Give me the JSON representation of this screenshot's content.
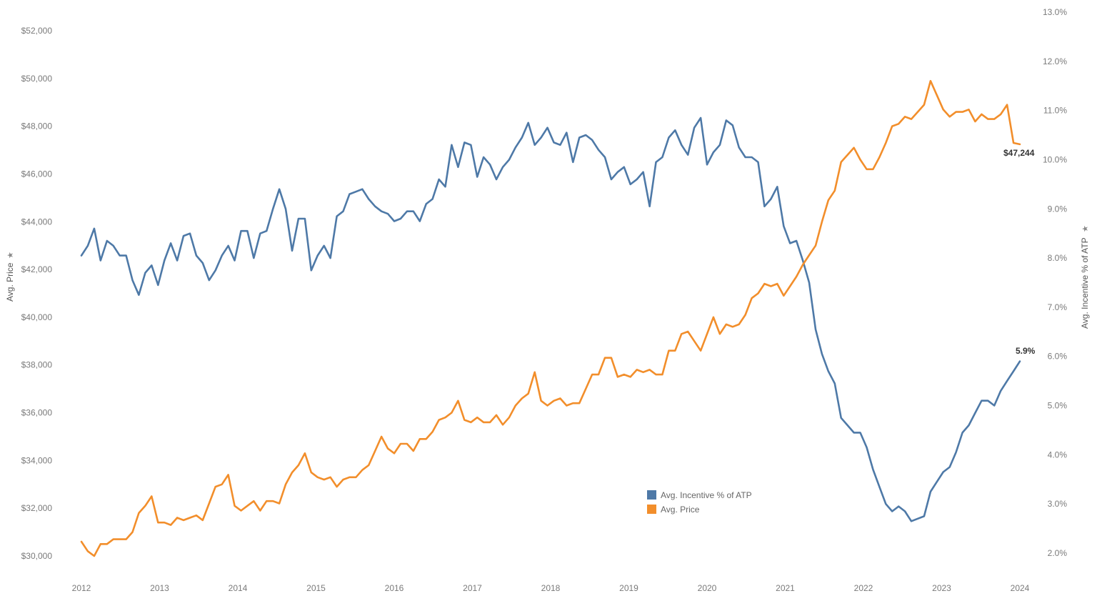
{
  "chart_data": {
    "type": "line",
    "x_ticks": [
      "2012",
      "2013",
      "2014",
      "2015",
      "2016",
      "2017",
      "2018",
      "2019",
      "2020",
      "2021",
      "2022",
      "2023",
      "2024"
    ],
    "left_axis": {
      "title": "Avg. Price",
      "ylim": [
        29500,
        52000
      ],
      "ticks": [
        30000,
        32000,
        34000,
        36000,
        38000,
        40000,
        42000,
        44000,
        46000,
        48000,
        50000,
        52000
      ],
      "tick_labels": [
        "$30,000",
        "$32,000",
        "$34,000",
        "$36,000",
        "$38,000",
        "$40,000",
        "$42,000",
        "$44,000",
        "$46,000",
        "$48,000",
        "$50,000",
        "$52,000"
      ]
    },
    "right_axis": {
      "title": "Avg. Incentive % of ATP",
      "ylim": [
        1.9,
        13.0
      ],
      "ticks": [
        2,
        3,
        4,
        5,
        6,
        7,
        8,
        9,
        10,
        11,
        12,
        13
      ],
      "tick_labels": [
        "2.0%",
        "3.0%",
        "4.0%",
        "5.0%",
        "6.0%",
        "7.0%",
        "8.0%",
        "9.0%",
        "10.0%",
        "11.0%",
        "12.0%",
        "13.0%"
      ]
    },
    "series": [
      {
        "name": "Avg. Incentive % of ATP",
        "axis": "right",
        "color": "#4e79a7",
        "end_label": "5.9%",
        "values": [
          8.05,
          8.25,
          8.6,
          7.95,
          8.35,
          8.25,
          8.05,
          8.05,
          7.55,
          7.25,
          7.7,
          7.85,
          7.45,
          7.95,
          8.3,
          7.95,
          8.45,
          8.5,
          8.05,
          7.9,
          7.55,
          7.75,
          8.05,
          8.25,
          7.95,
          8.55,
          8.55,
          8.0,
          8.5,
          8.55,
          9.0,
          9.4,
          9.0,
          8.15,
          8.8,
          8.8,
          7.75,
          8.05,
          8.25,
          8.0,
          8.85,
          8.95,
          9.3,
          9.35,
          9.4,
          9.2,
          9.05,
          8.95,
          8.9,
          8.75,
          8.8,
          8.95,
          8.95,
          8.75,
          9.1,
          9.2,
          9.6,
          9.45,
          10.3,
          9.85,
          10.35,
          10.3,
          9.65,
          10.05,
          9.9,
          9.6,
          9.85,
          10.0,
          10.25,
          10.45,
          10.75,
          10.3,
          10.45,
          10.65,
          10.35,
          10.3,
          10.55,
          9.95,
          10.45,
          10.5,
          10.4,
          10.2,
          10.05,
          9.6,
          9.75,
          9.85,
          9.5,
          9.6,
          9.75,
          9.05,
          9.95,
          10.05,
          10.45,
          10.6,
          10.3,
          10.1,
          10.65,
          10.85,
          9.9,
          10.15,
          10.3,
          10.8,
          10.7,
          10.25,
          10.05,
          10.05,
          9.95,
          9.05,
          9.2,
          9.45,
          8.65,
          8.3,
          8.35,
          7.95,
          7.5,
          6.55,
          6.05,
          5.7,
          5.45,
          4.75,
          4.6,
          4.45,
          4.45,
          4.15,
          3.7,
          3.35,
          3.0,
          2.85,
          2.95,
          2.85,
          2.65,
          2.7,
          2.75,
          3.25,
          3.45,
          3.65,
          3.75,
          4.05,
          4.45,
          4.6,
          4.85,
          5.1,
          5.1,
          5.0,
          5.3,
          5.5,
          5.7,
          5.9
        ]
      },
      {
        "name": "Avg. Price",
        "axis": "left",
        "color": "#f28e2b",
        "end_label": "$47,244",
        "values": [
          30600,
          30200,
          30000,
          30500,
          30500,
          30700,
          30700,
          30700,
          31000,
          31800,
          32100,
          32500,
          31400,
          31400,
          31300,
          31600,
          31500,
          31600,
          31700,
          31500,
          32200,
          32900,
          33000,
          33400,
          32100,
          31900,
          32100,
          32300,
          31900,
          32300,
          32300,
          32200,
          33000,
          33500,
          33800,
          34300,
          33500,
          33300,
          33200,
          33300,
          32900,
          33200,
          33300,
          33300,
          33600,
          33800,
          34400,
          35000,
          34500,
          34300,
          34700,
          34700,
          34400,
          34900,
          34900,
          35200,
          35700,
          35800,
          36000,
          36500,
          35700,
          35600,
          35800,
          35600,
          35600,
          35900,
          35500,
          35800,
          36300,
          36600,
          36800,
          37700,
          36500,
          36300,
          36500,
          36600,
          36300,
          36400,
          36400,
          37000,
          37600,
          37600,
          38300,
          38300,
          37500,
          37600,
          37500,
          37800,
          37700,
          37800,
          37600,
          37600,
          38600,
          38600,
          39300,
          39400,
          39000,
          38600,
          39300,
          40000,
          39300,
          39700,
          39600,
          39700,
          40100,
          40800,
          41000,
          41400,
          41300,
          41400,
          40900,
          41300,
          41700,
          42200,
          42600,
          43000,
          44000,
          44900,
          45300,
          46500,
          46800,
          47100,
          46600,
          46200,
          46200,
          46700,
          47300,
          48000,
          48100,
          48400,
          48300,
          48600,
          48900,
          49900,
          49300,
          48700,
          48400,
          48600,
          48600,
          48700,
          48200,
          48500,
          48300,
          48300,
          48500,
          48900,
          47300,
          47244
        ]
      }
    ],
    "legend": {
      "placement": "lower-center",
      "items": [
        {
          "label": "Avg. Incentive % of ATP",
          "color": "#4e79a7"
        },
        {
          "label": "Avg. Price",
          "color": "#f28e2b"
        }
      ]
    }
  }
}
